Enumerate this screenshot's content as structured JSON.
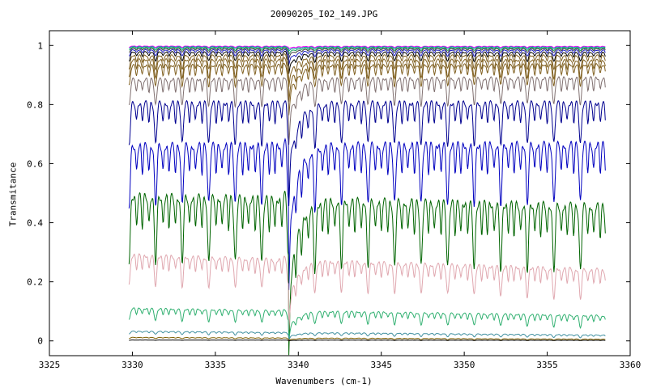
{
  "chart_data": {
    "type": "line",
    "title": "20090205_I02_149.JPG",
    "xlabel": "Wavenumbers (cm-1)",
    "ylabel": "Transmitance",
    "xlim": [
      3325,
      3360
    ],
    "ylim": [
      -0.05,
      1.05
    ],
    "x_ticks": [
      "3325",
      "3330",
      "3335",
      "3340",
      "3345",
      "3350",
      "3355",
      "3360"
    ],
    "y_ticks": [
      "0",
      "0.2",
      "0.4",
      "0.6",
      "0.8",
      "1"
    ],
    "x_range": [
      3329.8,
      3358.5
    ],
    "edge_feature_at": 3339.4,
    "line_period": 1.6,
    "grid": false,
    "legend": "none",
    "series": [
      {
        "color": "#ff00ff",
        "start": 0.998,
        "end": 0.997,
        "depth": 0.004
      },
      {
        "color": "#00a0a0",
        "start": 0.996,
        "end": 0.995,
        "depth": 0.006
      },
      {
        "color": "#20a060",
        "start": 0.993,
        "end": 0.992,
        "depth": 0.009
      },
      {
        "color": "#404040",
        "start": 0.99,
        "end": 0.989,
        "depth": 0.013
      },
      {
        "color": "#2020c0",
        "start": 0.985,
        "end": 0.984,
        "depth": 0.02
      },
      {
        "color": "#000000",
        "start": 0.978,
        "end": 0.976,
        "depth": 0.03
      },
      {
        "color": "#806020",
        "start": 0.966,
        "end": 0.966,
        "depth": 0.045
      },
      {
        "color": "#806020",
        "start": 0.952,
        "end": 0.95,
        "depth": 0.06
      },
      {
        "color": "#806020",
        "start": 0.932,
        "end": 0.935,
        "depth": 0.07
      },
      {
        "color": "#807070",
        "start": 0.885,
        "end": 0.89,
        "depth": 0.09
      },
      {
        "color": "#000090",
        "start": 0.805,
        "end": 0.805,
        "depth": 0.14
      },
      {
        "color": "#0000c0",
        "start": 0.66,
        "end": 0.665,
        "depth": 0.2
      },
      {
        "color": "#006400",
        "start": 0.49,
        "end": 0.455,
        "depth": 0.22
      },
      {
        "color": "#e0a8b0",
        "start": 0.29,
        "end": 0.24,
        "depth": 0.1
      },
      {
        "color": "#30b070",
        "start": 0.11,
        "end": 0.085,
        "depth": 0.04
      },
      {
        "color": "#4090a0",
        "start": 0.033,
        "end": 0.02,
        "depth": 0.01
      },
      {
        "color": "#806000",
        "start": 0.012,
        "end": 0.006,
        "depth": 0.004
      },
      {
        "color": "#000000",
        "start": 0.003,
        "end": 0.002,
        "depth": 0.001
      }
    ]
  }
}
